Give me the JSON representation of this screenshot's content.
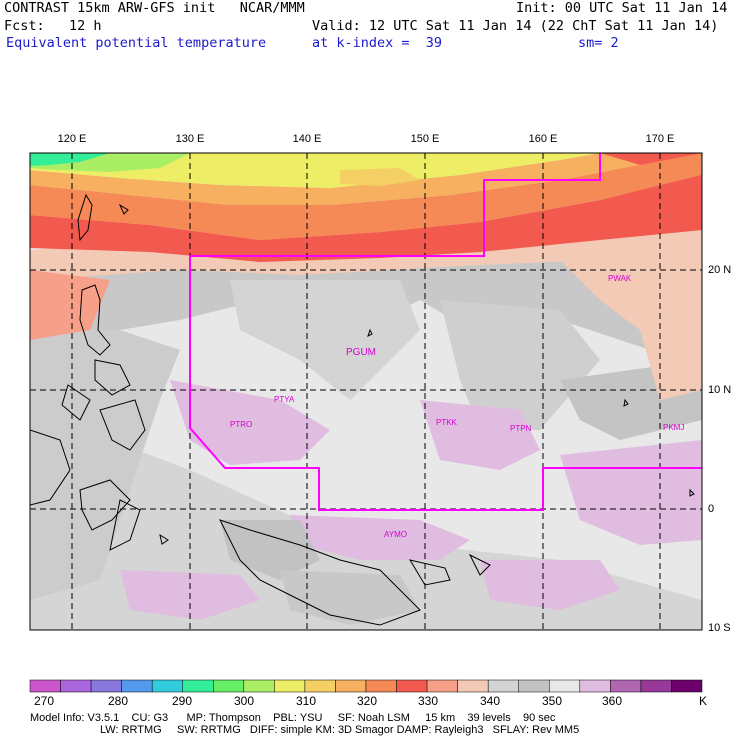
{
  "header": {
    "title": "CONTRAST 15km ARW-GFS init   NCAR/MMM",
    "fcst": "Fcst:   12 h",
    "field": "Equivalent potential temperature",
    "init": "Init: 00 UTC Sat 11 Jan 14",
    "valid": "Valid: 12 UTC Sat 11 Jan 14 (22 ChT Sat 11 Jan 14)",
    "level": "at k-index =  39",
    "sm": "sm= 2"
  },
  "map": {
    "lon_labels": [
      "120 E",
      "130 E",
      "140 E",
      "150 E",
      "160 E",
      "170 E"
    ],
    "lat_labels": [
      "20 N",
      "10 N",
      "0",
      "10 S"
    ],
    "stations": [
      "PWAK",
      "PGUM",
      "PTYA",
      "PTRO",
      "PTKK",
      "PTPN",
      "PKMJ",
      "AYMO"
    ],
    "palette": [
      "#cc55cc",
      "#aa66dd",
      "#8877dd",
      "#5599ee",
      "#33ccdd",
      "#33ee99",
      "#66ee66",
      "#aaee66",
      "#eeee66",
      "#f4d064",
      "#f6b060",
      "#f68a56",
      "#f25a50",
      "#f6a08a",
      "#f2cab6",
      "#d4d4d4",
      "#c2c2c2",
      "#e8e8e8",
      "#e0bce0",
      "#b066b0",
      "#983898",
      "#6e006e"
    ],
    "boundary_color": "#ff00ff"
  },
  "colorbar": {
    "labels": [
      "270",
      "280",
      "290",
      "300",
      "310",
      "320",
      "330",
      "340",
      "350",
      "360",
      "K"
    ]
  },
  "info": {
    "line1": "Model Info: V3.5.1    CU: G3      MP: Thompson    PBL: YSU     SF: Noah LSM     15 km    39 levels    90 sec",
    "line2": "LW: RRTMG     SW: RRTMG   DIFF: simple KM: 3D Smagor DAMP: Rayleigh3   SFLAY: Rev MM5"
  }
}
